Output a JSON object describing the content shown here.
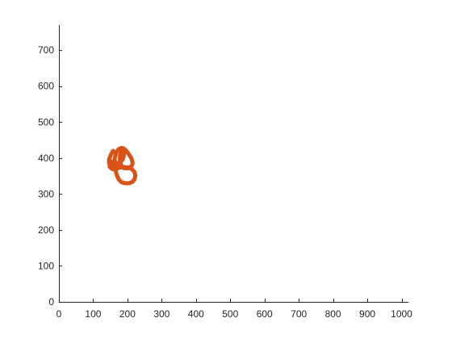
{
  "chart_data": {
    "type": "line",
    "title": "",
    "xlabel": "",
    "ylabel": "",
    "xlim": [
      0,
      1020
    ],
    "ylim": [
      0,
      770
    ],
    "xticks": [
      0,
      100,
      200,
      300,
      400,
      500,
      600,
      700,
      800,
      900,
      1000
    ],
    "yticks": [
      0,
      100,
      200,
      300,
      400,
      500,
      600,
      700
    ],
    "grid": false,
    "legend": "none",
    "series": [
      {
        "color": "#d95319",
        "x": [
          158,
          152,
          147,
          146,
          150,
          157,
          166,
          176,
          188,
          200,
          212,
          220,
          223,
          221,
          215,
          205,
          193,
          182,
          175,
          170,
          166,
          163,
          162,
          163,
          166,
          170,
          176,
          182,
          188,
          194,
          200,
          206,
          211,
          214,
          215,
          212,
          206,
          198,
          190,
          184,
          180,
          178,
          178,
          180,
          184,
          188,
          190,
          189,
          186,
          180,
          173,
          166,
          159,
          152,
          147
        ],
        "y": [
          420,
          410,
          398,
          386,
          378,
          372,
          371,
          373,
          375,
          374,
          370,
          362,
          352,
          342,
          334,
          330,
          330,
          333,
          340,
          350,
          362,
          375,
          388,
          400,
          412,
          420,
          426,
          428,
          427,
          423,
          416,
          408,
          400,
          392,
          384,
          378,
          373,
          371,
          372,
          377,
          385,
          395,
          405,
          413,
          418,
          418,
          413,
          405,
          396,
          390,
          386,
          385,
          387,
          390,
          395
        ]
      },
      {
        "color": "#d95319",
        "x": [
          146,
          152,
          160,
          168,
          172,
          170,
          162,
          154,
          148,
          150,
          158,
          166
        ],
        "y": [
          395,
          389,
          385,
          383,
          376,
          370,
          368,
          370,
          376,
          382,
          386,
          388
        ]
      }
    ]
  }
}
